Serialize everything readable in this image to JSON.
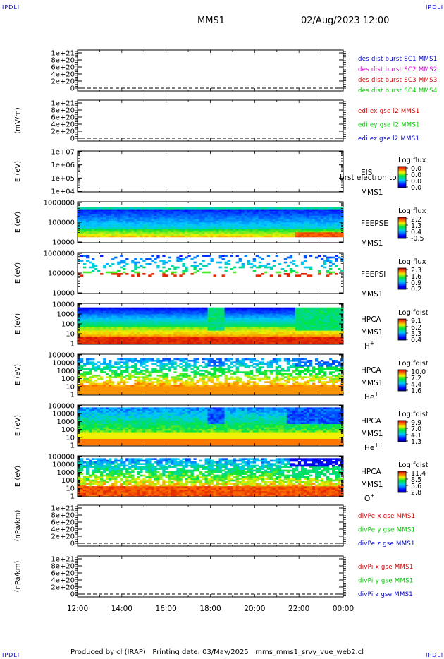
{
  "header": {
    "corner_label": "IPDLI",
    "spacecraft": "MMS1",
    "datetime": "02/Aug/2023 12:00"
  },
  "footer": {
    "produced_by": "Produced by cl (IRAP)",
    "printing_date": "Printing date: 03/May/2025",
    "script_name": "mms_mms1_srvy_vue_web2.cl"
  },
  "colors": {
    "blue": "#0000c8",
    "magenta": "#d000d0",
    "red": "#d00000",
    "green": "#00c800"
  },
  "chart_data": {
    "type": "heatmap",
    "xlabels": [
      "12:00",
      "14:00",
      "16:00",
      "18:00",
      "20:00",
      "22:00",
      "00:00"
    ],
    "panels": [
      {
        "kind": "line",
        "ylabel": "",
        "ticks": [
          "1e+21",
          "8e+20",
          "6e+20",
          "4e+20",
          "2e+20",
          "0"
        ],
        "zero_line": true,
        "legend": [
          {
            "text": "des dist burst SC1 MMS1",
            "color": "#0000c8"
          },
          {
            "text": "des dist burst SC2 MMS2",
            "color": "#d000d0"
          },
          {
            "text": "des dist burst SC3 MMS3",
            "color": "#d00000"
          },
          {
            "text": "des dist burst SC4 MMS4",
            "color": "#00c800"
          }
        ]
      },
      {
        "kind": "line",
        "ylabel": "(mV/m)",
        "ticks": [
          "1e+21",
          "8e+20",
          "6e+20",
          "4e+20",
          "2e+20",
          "0"
        ],
        "zero_line": true,
        "legend": [
          {
            "text": "edi ex gse l2 MMS1",
            "color": "#d00000"
          },
          {
            "text": "edi ey gse l2 MMS1",
            "color": "#00c800"
          },
          {
            "text": "edi ez gse l2 MMS1",
            "color": "#0000c8"
          }
        ]
      },
      {
        "kind": "spectro",
        "ylabel": "E (eV)",
        "ticks": [
          "1e+07",
          "1e+06",
          "1e+05",
          "1e+04"
        ],
        "label": [
          "EIS",
          "MMS1"
        ],
        "species": "",
        "overlay_text": "brst electron to",
        "colorbar": {
          "title": "Log flux",
          "values": [
            "0.0",
            "0.0",
            "0.0",
            "0.0"
          ]
        },
        "pattern": "empty"
      },
      {
        "kind": "spectro",
        "ylabel": "E (eV)",
        "ticks": [
          "1000000",
          "100000",
          "10000"
        ],
        "label": [
          "FEEPSE",
          "MMS1"
        ],
        "species": "",
        "colorbar": {
          "title": "Log flux",
          "values": [
            "2.2",
            "1.3",
            "0.4",
            "-0.5"
          ]
        },
        "pattern": "feepse"
      },
      {
        "kind": "spectro",
        "ylabel": "E (eV)",
        "ticks": [
          "1000000",
          "100000",
          "10000"
        ],
        "label": [
          "FEEPSI",
          "MMS1"
        ],
        "species": "",
        "colorbar": {
          "title": "Log flux",
          "values": [
            "2.3",
            "1.6",
            "0.9",
            "0.2"
          ]
        },
        "pattern": "feepsi"
      },
      {
        "kind": "spectro",
        "ylabel": "E (eV)",
        "ticks": [
          "10000",
          "1000",
          "100",
          "10",
          "1"
        ],
        "label": [
          "HPCA",
          "MMS1"
        ],
        "species": "H+",
        "colorbar": {
          "title": "Log fdist",
          "values": [
            "9.1",
            "6.2",
            "3.3",
            "0.4"
          ]
        },
        "pattern": "hplus"
      },
      {
        "kind": "spectro",
        "ylabel": "E (eV)",
        "ticks": [
          "100000",
          "10000",
          "1000",
          "100",
          "10",
          "1"
        ],
        "label": [
          "HPCA",
          "MMS1"
        ],
        "species": "He+",
        "colorbar": {
          "title": "Log fdist",
          "values": [
            "10.0",
            "7.2",
            "4.4",
            "1.6"
          ]
        },
        "pattern": "heplus"
      },
      {
        "kind": "spectro",
        "ylabel": "E (eV)",
        "ticks": [
          "100000",
          "10000",
          "1000",
          "100",
          "10",
          "1"
        ],
        "label": [
          "HPCA",
          "MMS1"
        ],
        "species": "He++",
        "colorbar": {
          "title": "Log fdist",
          "values": [
            "9.9",
            "7.0",
            "4.1",
            "1.3"
          ]
        },
        "pattern": "hepp"
      },
      {
        "kind": "spectro",
        "ylabel": "E (eV)",
        "ticks": [
          "100000",
          "10000",
          "1000",
          "100",
          "10",
          "1"
        ],
        "label": [
          "HPCA",
          "MMS1"
        ],
        "species": "O+",
        "colorbar": {
          "title": "Log fdist",
          "values": [
            "11.4",
            "8.5",
            "5.6",
            "2.8"
          ]
        },
        "pattern": "oplus"
      },
      {
        "kind": "line",
        "ylabel": "(nPa/km)",
        "ticks": [
          "1e+21",
          "8e+20",
          "6e+20",
          "4e+20",
          "2e+20",
          "0"
        ],
        "zero_line": true,
        "legend": [
          {
            "text": "divPe x gse MMS1",
            "color": "#d00000"
          },
          {
            "text": "divPe y gse MMS1",
            "color": "#00c800"
          },
          {
            "text": "divPe z gse MMS1",
            "color": "#0000c8"
          }
        ]
      },
      {
        "kind": "line",
        "ylabel": "(nPa/km)",
        "ticks": [
          "1e+21",
          "8e+20",
          "6e+20",
          "4e+20",
          "2e+20",
          "0"
        ],
        "zero_line": true,
        "legend": [
          {
            "text": "divPi x gse MMS1",
            "color": "#d00000"
          },
          {
            "text": "divPi y gse MMS1",
            "color": "#00c800"
          },
          {
            "text": "divPi z gse MMS1",
            "color": "#0000c8"
          }
        ]
      }
    ]
  }
}
